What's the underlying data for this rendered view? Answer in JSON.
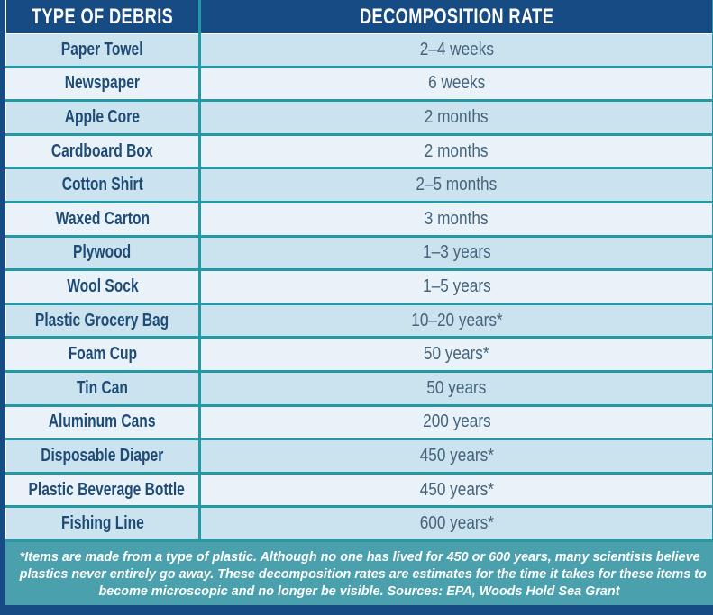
{
  "table": {
    "headers": [
      "TYPE OF DEBRIS",
      "DECOMPOSITION RATE"
    ],
    "rows": [
      {
        "type": "Paper Towel",
        "rate": "2–4 weeks"
      },
      {
        "type": "Newspaper",
        "rate": "6 weeks"
      },
      {
        "type": "Apple Core",
        "rate": "2 months"
      },
      {
        "type": "Cardboard Box",
        "rate": "2 months"
      },
      {
        "type": "Cotton Shirt",
        "rate": "2–5 months"
      },
      {
        "type": "Waxed Carton",
        "rate": "3 months"
      },
      {
        "type": "Plywood",
        "rate": "1–3 years"
      },
      {
        "type": "Wool Sock",
        "rate": "1–5 years"
      },
      {
        "type": "Plastic Grocery Bag",
        "rate": "10–20 years*"
      },
      {
        "type": "Foam Cup",
        "rate": "50 years*"
      },
      {
        "type": "Tin Can",
        "rate": "50 years"
      },
      {
        "type": "Aluminum Cans",
        "rate": "200 years"
      },
      {
        "type": "Disposable Diaper",
        "rate": "450 years*"
      },
      {
        "type": "Plastic Beverage Bottle",
        "rate": "450 years*"
      },
      {
        "type": "Fishing Line",
        "rate": "600 years*"
      }
    ]
  },
  "footnote": {
    "lines": [
      "*Items are made from a type of plastic. Although no one has lived for 450 or 600 years, many scientists believe",
      "plastics never entirely go away. These decomposition rates are estimates for the time it takes for these items to",
      "become microscopic and no longer be visible.  Sources: EPA, Woods Hold Sea Grant"
    ]
  },
  "colors": {
    "header_navy": "#164B84",
    "border_teal": "#2598A6",
    "footnote_teal": "#4AA0AC",
    "row_dark": "#CBE2EF",
    "row_light": "#E9F2F9",
    "type_text": "#1F4C77",
    "rate_text": "#45647C",
    "header_text": "#FFFFFF"
  },
  "chart_data": {
    "type": "table",
    "title": "",
    "columns": [
      "TYPE OF DEBRIS",
      "DECOMPOSITION RATE"
    ],
    "rows": [
      [
        "Paper Towel",
        "2–4 weeks"
      ],
      [
        "Newspaper",
        "6 weeks"
      ],
      [
        "Apple Core",
        "2 months"
      ],
      [
        "Cardboard Box",
        "2 months"
      ],
      [
        "Cotton Shirt",
        "2–5 months"
      ],
      [
        "Waxed Carton",
        "3 months"
      ],
      [
        "Plywood",
        "1–3 years"
      ],
      [
        "Wool Sock",
        "1–5 years"
      ],
      [
        "Plastic Grocery Bag",
        "10–20 years*"
      ],
      [
        "Foam Cup",
        "50 years*"
      ],
      [
        "Tin Can",
        "50 years"
      ],
      [
        "Aluminum Cans",
        "200 years"
      ],
      [
        "Disposable Diaper",
        "450 years*"
      ],
      [
        "Plastic Beverage Bottle",
        "450 years*"
      ],
      [
        "Fishing Line",
        "600 years*"
      ]
    ],
    "footnote": "*Items are made from a type of plastic. Although no one has lived for 450 or 600 years, many scientists believe plastics never entirely go away. These decomposition rates are estimates for the time it takes for these items to become microscopic and no longer be visible.  Sources: EPA, Woods Hold Sea Grant"
  }
}
